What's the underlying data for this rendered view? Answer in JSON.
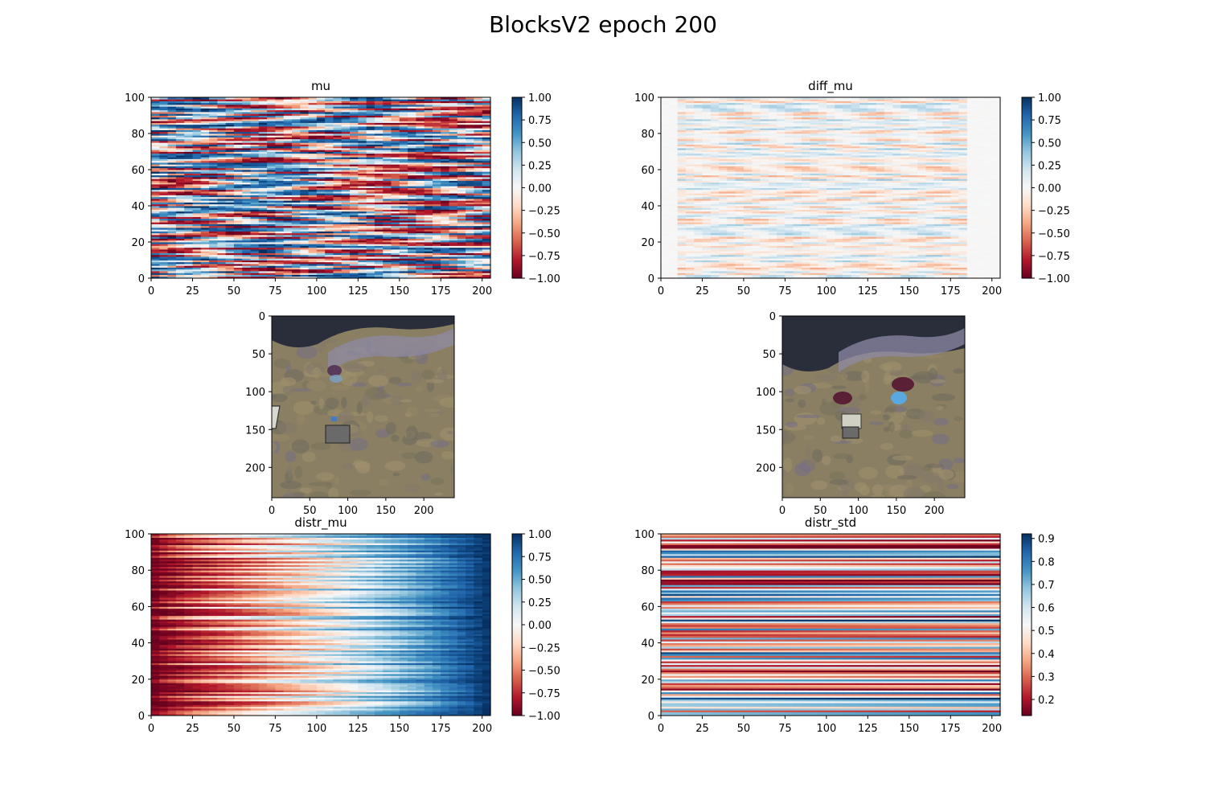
{
  "figure": {
    "suptitle": "BlocksV2 epoch 200"
  },
  "colormaps": {
    "RdBu": [
      "#67001f",
      "#b2182b",
      "#d6604d",
      "#f4a582",
      "#fddbc7",
      "#f7f7f7",
      "#d1e5f0",
      "#92c5de",
      "#4393c3",
      "#2166ac",
      "#053061"
    ]
  },
  "chart_data": [
    {
      "type": "heatmap",
      "name": "mu",
      "title": "mu",
      "cmap": "RdBu",
      "xlim": [
        0,
        205
      ],
      "ylim": [
        0,
        100
      ],
      "xticks": [
        0,
        25,
        50,
        75,
        100,
        125,
        150,
        175,
        200
      ],
      "yticks": [
        0,
        20,
        40,
        60,
        80,
        100
      ],
      "colorbar": {
        "range": [
          -1.0,
          1.0
        ],
        "ticks": [
          "1.00",
          "0.75",
          "0.50",
          "0.25",
          "0.00",
          "−0.25",
          "−0.50",
          "−0.75",
          "−1.00"
        ],
        "tick_values": [
          1.0,
          0.75,
          0.5,
          0.25,
          0.0,
          -0.25,
          -0.5,
          -0.75,
          -1.0
        ]
      },
      "pattern": "Values oscillate between strongly negative (red) and strongly positive (blue) across the full width for all 100 rows."
    },
    {
      "type": "heatmap",
      "name": "diff_mu",
      "title": "diff_mu",
      "cmap": "RdBu",
      "xlim": [
        0,
        205
      ],
      "ylim": [
        0,
        100
      ],
      "xticks": [
        0,
        25,
        50,
        75,
        100,
        125,
        150,
        175,
        200
      ],
      "yticks": [
        0,
        20,
        40,
        60,
        80,
        100
      ],
      "colorbar": {
        "range": [
          -1.0,
          1.0
        ],
        "ticks": [
          "1.00",
          "0.75",
          "0.50",
          "0.25",
          "0.00",
          "−0.25",
          "−0.50",
          "−0.75",
          "−1.00"
        ],
        "tick_values": [
          1.0,
          0.75,
          0.5,
          0.25,
          0.0,
          -0.25,
          -0.5,
          -0.75,
          -1.0
        ]
      },
      "pattern": "Near-zero values (white) with faint red/blue streaks between x≈10 and x≈180; zero beyond x≈185."
    },
    {
      "type": "image",
      "name": "image_left",
      "xlim": [
        0,
        240
      ],
      "ylim": [
        240,
        0
      ],
      "xticks": [
        0,
        50,
        100,
        150,
        200
      ],
      "yticks": [
        0,
        50,
        100,
        150,
        200
      ]
    },
    {
      "type": "image",
      "name": "image_right",
      "xlim": [
        0,
        240
      ],
      "ylim": [
        240,
        0
      ],
      "xticks": [
        0,
        50,
        100,
        150,
        200
      ],
      "yticks": [
        0,
        50,
        100,
        150,
        200
      ]
    },
    {
      "type": "heatmap",
      "name": "distr_mu",
      "title": "distr_mu",
      "cmap": "RdBu",
      "xlim": [
        0,
        205
      ],
      "ylim": [
        0,
        100
      ],
      "xticks": [
        0,
        25,
        50,
        75,
        100,
        125,
        150,
        175,
        200
      ],
      "yticks": [
        0,
        20,
        40,
        60,
        80,
        100
      ],
      "colorbar": {
        "range": [
          -1.0,
          1.0
        ],
        "ticks": [
          "1.00",
          "0.75",
          "0.50",
          "0.25",
          "0.00",
          "−0.25",
          "−0.50",
          "−0.75",
          "−1.00"
        ],
        "tick_values": [
          1.0,
          0.75,
          0.5,
          0.25,
          0.0,
          -0.25,
          -0.5,
          -0.75,
          -1.0
        ]
      },
      "pattern": "Each row increases from about −1 (red) at x=0 to about +1 (blue) at x=205."
    },
    {
      "type": "heatmap",
      "name": "distr_std",
      "title": "distr_std",
      "cmap": "RdBu",
      "xlim": [
        0,
        205
      ],
      "ylim": [
        0,
        100
      ],
      "xticks": [
        0,
        25,
        50,
        75,
        100,
        125,
        150,
        175,
        200
      ],
      "yticks": [
        0,
        20,
        40,
        60,
        80,
        100
      ],
      "colorbar": {
        "range": [
          0.13,
          0.92
        ],
        "ticks": [
          "0.9",
          "0.8",
          "0.7",
          "0.6",
          "0.5",
          "0.4",
          "0.3",
          "0.2"
        ],
        "tick_values": [
          0.9,
          0.8,
          0.7,
          0.6,
          0.5,
          0.4,
          0.3,
          0.2
        ]
      },
      "pattern": "Horizontal stripes: each row has a roughly constant standard deviation between about 0.15 and 0.9, slightly higher toward the right."
    }
  ]
}
